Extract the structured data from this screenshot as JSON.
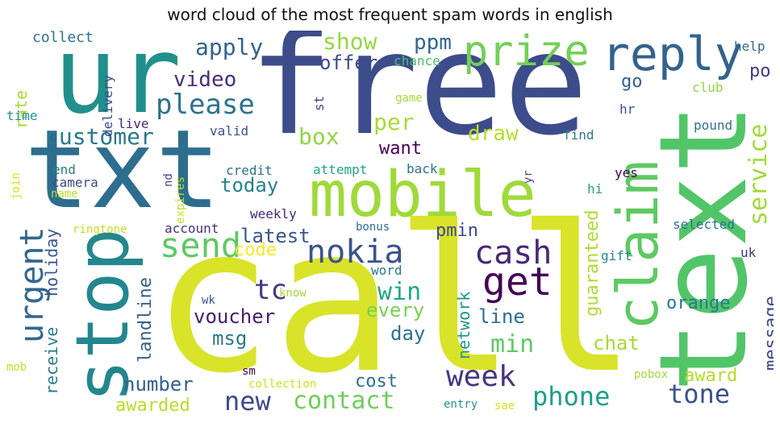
{
  "title": "word cloud of the most frequent spam words in english",
  "words": [
    {
      "text": "call",
      "color": "#d9e32a"
    },
    {
      "text": "free",
      "color": "#3d4c8a"
    },
    {
      "text": "txt",
      "color": "#2d6d8e"
    },
    {
      "text": "ur",
      "color": "#21908d"
    },
    {
      "text": "text",
      "color": "#52c569"
    },
    {
      "text": "mobile",
      "color": "#9fda3a"
    },
    {
      "text": "stop",
      "color": "#24868e"
    },
    {
      "text": "claim",
      "color": "#5ec962"
    },
    {
      "text": "reply",
      "color": "#33638d"
    },
    {
      "text": "prize",
      "color": "#73d056"
    },
    {
      "text": "get",
      "color": "#440154"
    },
    {
      "text": "nokia",
      "color": "#3b528b"
    },
    {
      "text": "send",
      "color": "#5ec962"
    },
    {
      "text": "cash",
      "color": "#482878"
    },
    {
      "text": "please",
      "color": "#2c728e"
    },
    {
      "text": "urgent",
      "color": "#31688e"
    },
    {
      "text": "week",
      "color": "#453781"
    },
    {
      "text": "phone",
      "color": "#1f9e89"
    },
    {
      "text": "contact",
      "color": "#6ece58"
    },
    {
      "text": "new",
      "color": "#3e4989"
    },
    {
      "text": "service",
      "color": "#a0da39"
    },
    {
      "text": "customer",
      "color": "#2a788e"
    },
    {
      "text": "tone",
      "color": "#3b528b"
    },
    {
      "text": "win",
      "color": "#22a785"
    },
    {
      "text": "min",
      "color": "#5ec962"
    },
    {
      "text": "tc",
      "color": "#443983"
    },
    {
      "text": "box",
      "color": "#8fd744"
    },
    {
      "text": "per",
      "color": "#a8db34"
    },
    {
      "text": "apply",
      "color": "#34618d"
    },
    {
      "text": "video",
      "color": "#472d7b"
    },
    {
      "text": "ppm",
      "color": "#31688e"
    },
    {
      "text": "show",
      "color": "#95d840"
    },
    {
      "text": "offer",
      "color": "#3e4a89"
    },
    {
      "text": "draw",
      "color": "#b5de2b"
    },
    {
      "text": "want",
      "color": "#440154"
    },
    {
      "text": "today",
      "color": "#26828e"
    },
    {
      "text": "latest",
      "color": "#39568c"
    },
    {
      "text": "code",
      "color": "#fde725"
    },
    {
      "text": "voucher",
      "color": "#481b6d"
    },
    {
      "text": "msg",
      "color": "#2a788e"
    },
    {
      "text": "every",
      "color": "#7ad151"
    },
    {
      "text": "day",
      "color": "#2c728e"
    },
    {
      "text": "line",
      "color": "#2d708e"
    },
    {
      "text": "pmin",
      "color": "#3f4889"
    },
    {
      "text": "chat",
      "color": "#a5db36"
    },
    {
      "text": "orange",
      "color": "#297b8e"
    },
    {
      "text": "award",
      "color": "#b5de2b"
    },
    {
      "text": "message",
      "color": "#3e4989"
    },
    {
      "text": "guaranteed",
      "color": "#addc30"
    },
    {
      "text": "network",
      "color": "#1f968b"
    },
    {
      "text": "number",
      "color": "#34618d"
    },
    {
      "text": "awarded",
      "color": "#b8de29"
    },
    {
      "text": "cost",
      "color": "#2c728e"
    },
    {
      "text": "landline",
      "color": "#33638d"
    },
    {
      "text": "receive",
      "color": "#287d8e"
    },
    {
      "text": "holiday",
      "color": "#39568c"
    },
    {
      "text": "go",
      "color": "#34618d"
    },
    {
      "text": "po",
      "color": "#453781"
    },
    {
      "text": "rate",
      "color": "#a5db36"
    },
    {
      "text": "delivery",
      "color": "#3e4989"
    },
    {
      "text": "collect",
      "color": "#2c728e"
    },
    {
      "text": "chance",
      "color": "#4ac16d"
    },
    {
      "text": "help",
      "color": "#31688e"
    },
    {
      "text": "club",
      "color": "#8fd744"
    },
    {
      "text": "pound",
      "color": "#2c728e"
    },
    {
      "text": "hr",
      "color": "#3b528b"
    },
    {
      "text": "find",
      "color": "#2a788e"
    },
    {
      "text": "yes",
      "color": "#440154"
    },
    {
      "text": "yr",
      "color": "#3e4989"
    },
    {
      "text": "hi",
      "color": "#20a386"
    },
    {
      "text": "selected",
      "color": "#2c728e"
    },
    {
      "text": "gift",
      "color": "#25858e"
    },
    {
      "text": "uk",
      "color": "#46337f"
    },
    {
      "text": "time",
      "color": "#21908d"
    },
    {
      "text": "live",
      "color": "#482878"
    },
    {
      "text": "valid",
      "color": "#3b528b"
    },
    {
      "text": "st",
      "color": "#414487"
    },
    {
      "text": "game",
      "color": "#9fda3a"
    },
    {
      "text": "end",
      "color": "#297b8e"
    },
    {
      "text": "camera",
      "color": "#3e4989"
    },
    {
      "text": "name",
      "color": "#b5de2b"
    },
    {
      "text": "join",
      "color": "#d8e219"
    },
    {
      "text": "nd",
      "color": "#3e4989"
    },
    {
      "text": "expires",
      "color": "#c2df23"
    },
    {
      "text": "credit",
      "color": "#2c728e"
    },
    {
      "text": "attempt",
      "color": "#22a785"
    },
    {
      "text": "back",
      "color": "#2c728e"
    },
    {
      "text": "weekly",
      "color": "#482878"
    },
    {
      "text": "account",
      "color": "#46337f"
    },
    {
      "text": "bonus",
      "color": "#2c728e"
    },
    {
      "text": "ringtone",
      "color": "#c2df23"
    },
    {
      "text": "word",
      "color": "#2a788e"
    },
    {
      "text": "know",
      "color": "#a5db36"
    },
    {
      "text": "wk",
      "color": "#3b528b"
    },
    {
      "text": "sm",
      "color": "#440154"
    },
    {
      "text": "collection",
      "color": "#cde11d"
    },
    {
      "text": "mob",
      "color": "#c2df23"
    },
    {
      "text": "entry",
      "color": "#1f968b"
    },
    {
      "text": "sae",
      "color": "#d8e219"
    },
    {
      "text": "pobox",
      "color": "#9fda3a"
    }
  ]
}
